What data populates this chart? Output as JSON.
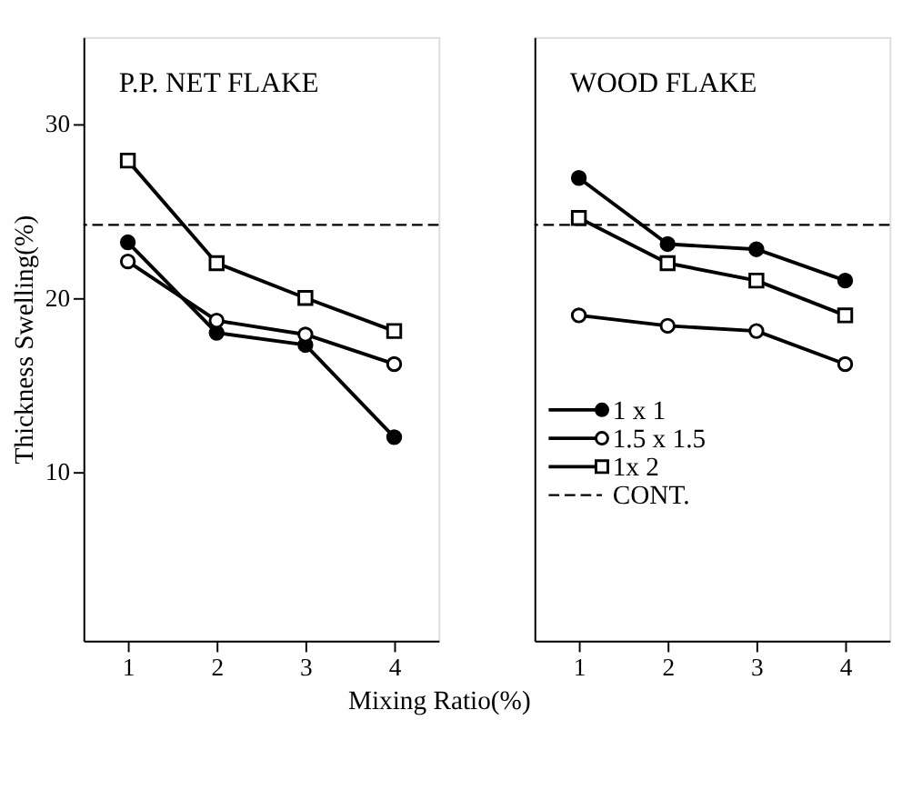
{
  "chart_data": [
    {
      "type": "line",
      "title": "P.P. NET FLAKE",
      "ylabel": "Thickness Swelling(%)",
      "xlabel": "Mixing Ratio(%)",
      "x": [
        1,
        2,
        3,
        4
      ],
      "xlim": [
        0.5,
        4.5
      ],
      "xticks": [
        1,
        2,
        3,
        4
      ],
      "ylim": [
        0.3,
        35
      ],
      "yticks": [
        10,
        20,
        30
      ],
      "grid": false,
      "legend": false,
      "series": [
        {
          "color": "#000000",
          "marker": "circle",
          "values": [
            23.2,
            18.0,
            17.3,
            12.0
          ]
        },
        {
          "color": "#000000",
          "marker": "circle",
          "values": [
            22.1,
            18.7,
            17.9,
            16.2
          ]
        },
        {
          "color": "#000000",
          "marker": "square",
          "values": [
            27.9,
            22.0,
            20.0,
            18.1
          ]
        }
      ],
      "ref_lines": [
        {
          "axis": "y",
          "value": 24.2,
          "line_style": "dashed",
          "color": "#000000"
        }
      ]
    },
    {
      "type": "line",
      "title": "WOOD FLAKE",
      "x": [
        1,
        2,
        3,
        4
      ],
      "xlim": [
        0.5,
        4.5
      ],
      "xticks": [
        1,
        2,
        3,
        4
      ],
      "ylim": [
        0.3,
        35
      ],
      "tick_labels": "x",
      "grid": false,
      "legend": "bottom left",
      "series": [
        {
          "name": "1 x 1",
          "color": "#000000",
          "marker": "circle",
          "values": [
            26.9,
            23.1,
            22.8,
            21.0
          ]
        },
        {
          "name": "1.5 x 1.5",
          "color": "#000000",
          "marker": "circle",
          "values": [
            19.0,
            18.4,
            18.1,
            16.2
          ]
        },
        {
          "name": "1x 2",
          "color": "#000000",
          "marker": "square",
          "values": [
            24.6,
            22.0,
            21.0,
            19.0
          ]
        }
      ],
      "ref_lines": [
        {
          "axis": "y",
          "value": 24.2,
          "label": "CONT.",
          "line_style": "dashed",
          "color": "#000000"
        }
      ]
    }
  ]
}
